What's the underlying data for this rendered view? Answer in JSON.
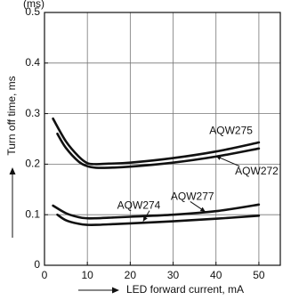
{
  "chart_data": {
    "type": "line",
    "title": "(ms)",
    "xlabel": "LED forward current, mA",
    "ylabel": "Turn off time, ms",
    "xlim": [
      0,
      55
    ],
    "ylim": [
      0,
      0.5
    ],
    "x_ticks": [
      0,
      10,
      20,
      30,
      40,
      50
    ],
    "y_ticks": [
      0,
      0.1,
      0.2,
      0.3,
      0.4,
      0.5
    ],
    "y_tick_labels": [
      "0",
      "0.1",
      "0.2",
      "0.3",
      "0.4",
      "0.5"
    ],
    "grid": true,
    "line_color": "#111111",
    "series": [
      {
        "name": "AQW275",
        "x": [
          2,
          5,
          8,
          10,
          12,
          15,
          20,
          30,
          40,
          50
        ],
        "y": [
          0.29,
          0.245,
          0.215,
          0.202,
          0.2,
          0.201,
          0.203,
          0.212,
          0.225,
          0.243
        ]
      },
      {
        "name": "AQW272",
        "x": [
          3,
          5,
          8,
          10,
          12,
          15,
          20,
          30,
          40,
          50
        ],
        "y": [
          0.26,
          0.232,
          0.205,
          0.196,
          0.193,
          0.193,
          0.195,
          0.203,
          0.215,
          0.231
        ]
      },
      {
        "name": "AQW277",
        "x": [
          2,
          5,
          8,
          10,
          12,
          15,
          20,
          30,
          40,
          50
        ],
        "y": [
          0.118,
          0.103,
          0.095,
          0.093,
          0.093,
          0.094,
          0.096,
          0.1,
          0.107,
          0.12
        ]
      },
      {
        "name": "AQW274",
        "x": [
          3,
          5,
          8,
          10,
          12,
          15,
          20,
          30,
          40,
          50
        ],
        "y": [
          0.1,
          0.089,
          0.082,
          0.08,
          0.08,
          0.081,
          0.083,
          0.087,
          0.092,
          0.098
        ]
      }
    ]
  }
}
